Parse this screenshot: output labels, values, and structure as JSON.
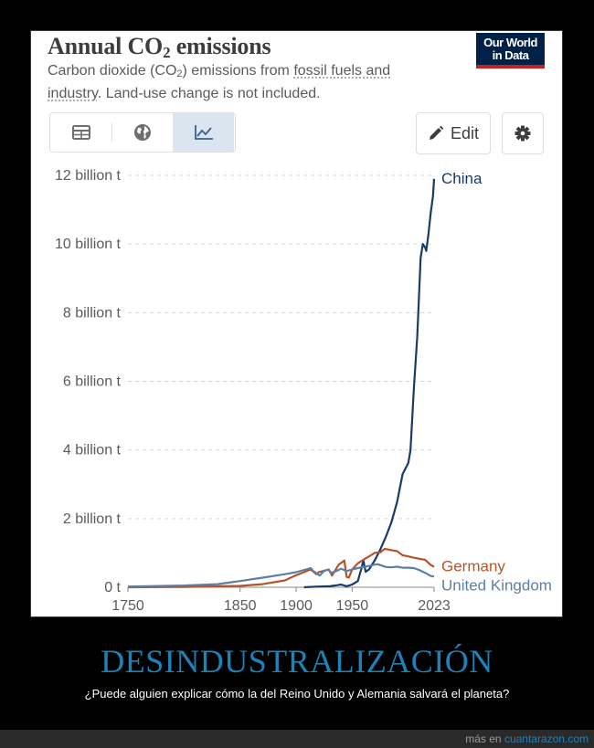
{
  "header": {
    "title_main": "Annual CO",
    "title_sub": "2",
    "title_rest": " emissions",
    "subtitle_a": "Carbon dioxide (CO",
    "subtitle_sub": "2",
    "subtitle_b": ") emissions from ",
    "subtitle_link1": "fossil fuels and industry",
    "subtitle_c": ". Land-use change is not included.",
    "logo_line1": "Our World",
    "logo_line2": "in Data"
  },
  "toolbar": {
    "tabs": [
      {
        "name": "table",
        "icon": "table-icon"
      },
      {
        "name": "map",
        "icon": "globe-icon"
      },
      {
        "name": "chart",
        "icon": "line-chart-icon",
        "active": true
      }
    ],
    "edit_label": "Edit",
    "edit_icon": "pencil-icon",
    "settings_icon": "gear-icon"
  },
  "chart_data": {
    "type": "line",
    "ylim": [
      0,
      12000000000
    ],
    "xlim": [
      1750,
      2023
    ],
    "yticks": [
      {
        "value": 0,
        "label": "0 t"
      },
      {
        "value": 2000000000,
        "label": "2 billion t"
      },
      {
        "value": 4000000000,
        "label": "4 billion t"
      },
      {
        "value": 6000000000,
        "label": "6 billion t"
      },
      {
        "value": 8000000000,
        "label": "8 billion t"
      },
      {
        "value": 10000000000,
        "label": "10 billion t"
      },
      {
        "value": 12000000000,
        "label": "12 billion t"
      }
    ],
    "xticks": [
      {
        "value": 1750,
        "label": "1750"
      },
      {
        "value": 1850,
        "label": "1850"
      },
      {
        "value": 1900,
        "label": "1900"
      },
      {
        "value": 1950,
        "label": "1950"
      },
      {
        "value": 2023,
        "label": "2023"
      }
    ],
    "grid": "horizontal-dashed",
    "series": [
      {
        "name": "China",
        "color": "#1b3a66",
        "points": [
          [
            1907,
            0
          ],
          [
            1920,
            20000000
          ],
          [
            1930,
            30000000
          ],
          [
            1937,
            60000000
          ],
          [
            1940,
            80000000
          ],
          [
            1945,
            30000000
          ],
          [
            1950,
            80000000
          ],
          [
            1955,
            180000000
          ],
          [
            1958,
            520000000
          ],
          [
            1960,
            780000000
          ],
          [
            1962,
            450000000
          ],
          [
            1965,
            520000000
          ],
          [
            1970,
            780000000
          ],
          [
            1975,
            1100000000
          ],
          [
            1980,
            1470000000
          ],
          [
            1985,
            1900000000
          ],
          [
            1990,
            2480000000
          ],
          [
            1995,
            3300000000
          ],
          [
            2000,
            3620000000
          ],
          [
            2002,
            4000000000
          ],
          [
            2005,
            5800000000
          ],
          [
            2008,
            7300000000
          ],
          [
            2011,
            9600000000
          ],
          [
            2013,
            10000000000
          ],
          [
            2015,
            9900000000
          ],
          [
            2016,
            9800000000
          ],
          [
            2018,
            10300000000
          ],
          [
            2020,
            10900000000
          ],
          [
            2022,
            11400000000
          ],
          [
            2023,
            11900000000
          ]
        ]
      },
      {
        "name": "Germany",
        "color": "#b5542a",
        "points": [
          [
            1750,
            0
          ],
          [
            1800,
            10000000
          ],
          [
            1850,
            40000000
          ],
          [
            1870,
            90000000
          ],
          [
            1890,
            200000000
          ],
          [
            1900,
            350000000
          ],
          [
            1913,
            520000000
          ],
          [
            1918,
            380000000
          ],
          [
            1920,
            440000000
          ],
          [
            1929,
            520000000
          ],
          [
            1932,
            340000000
          ],
          [
            1938,
            660000000
          ],
          [
            1943,
            780000000
          ],
          [
            1945,
            300000000
          ],
          [
            1947,
            280000000
          ],
          [
            1950,
            520000000
          ],
          [
            1955,
            700000000
          ],
          [
            1960,
            800000000
          ],
          [
            1965,
            900000000
          ],
          [
            1970,
            1000000000
          ],
          [
            1975,
            1020000000
          ],
          [
            1979,
            1120000000
          ],
          [
            1985,
            1080000000
          ],
          [
            1990,
            1050000000
          ],
          [
            1995,
            930000000
          ],
          [
            2000,
            900000000
          ],
          [
            2005,
            860000000
          ],
          [
            2010,
            830000000
          ],
          [
            2015,
            800000000
          ],
          [
            2020,
            650000000
          ],
          [
            2023,
            600000000
          ]
        ]
      },
      {
        "name": "United Kingdom",
        "color": "#5f7ea7",
        "points": [
          [
            1750,
            20000000
          ],
          [
            1800,
            50000000
          ],
          [
            1830,
            90000000
          ],
          [
            1850,
            180000000
          ],
          [
            1870,
            280000000
          ],
          [
            1890,
            380000000
          ],
          [
            1900,
            440000000
          ],
          [
            1913,
            560000000
          ],
          [
            1915,
            480000000
          ],
          [
            1921,
            340000000
          ],
          [
            1925,
            480000000
          ],
          [
            1929,
            510000000
          ],
          [
            1931,
            420000000
          ],
          [
            1935,
            460000000
          ],
          [
            1940,
            540000000
          ],
          [
            1945,
            470000000
          ],
          [
            1950,
            520000000
          ],
          [
            1955,
            560000000
          ],
          [
            1960,
            590000000
          ],
          [
            1965,
            620000000
          ],
          [
            1970,
            660000000
          ],
          [
            1973,
            670000000
          ],
          [
            1980,
            590000000
          ],
          [
            1985,
            580000000
          ],
          [
            1990,
            600000000
          ],
          [
            1995,
            570000000
          ],
          [
            2000,
            570000000
          ],
          [
            2005,
            560000000
          ],
          [
            2010,
            500000000
          ],
          [
            2015,
            420000000
          ],
          [
            2020,
            330000000
          ],
          [
            2023,
            310000000
          ]
        ]
      }
    ]
  },
  "caption": {
    "title": "DESINDUSTRALIZACIÓN",
    "text": "¿Puede alguien explicar cómo la del Reino Unido y Alemania salvará el planeta?"
  },
  "footer": {
    "prefix": "más en ",
    "link": "cuantarazon.com"
  }
}
